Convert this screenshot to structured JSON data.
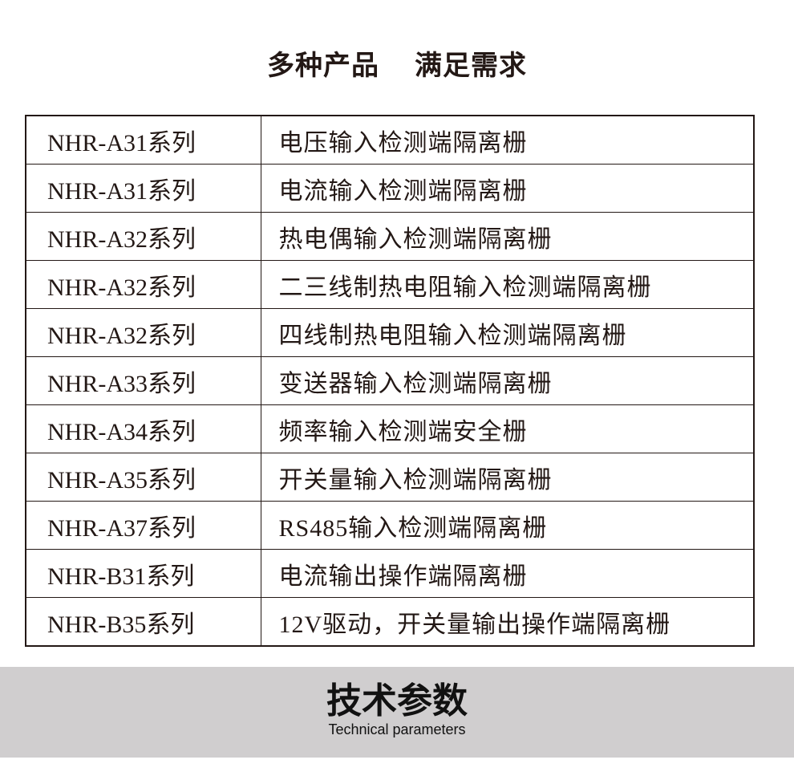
{
  "header": {
    "title_part1": "多种产品",
    "title_part2": "满足需求"
  },
  "table": {
    "rows": [
      {
        "series": "NHR-A31系列",
        "desc": "电压输入检测端隔离栅"
      },
      {
        "series": "NHR-A31系列",
        "desc": "电流输入检测端隔离栅"
      },
      {
        "series": "NHR-A32系列",
        "desc": "热电偶输入检测端隔离栅"
      },
      {
        "series": "NHR-A32系列",
        "desc": "二三线制热电阻输入检测端隔离栅"
      },
      {
        "series": "NHR-A32系列",
        "desc": "四线制热电阻输入检测端隔离栅"
      },
      {
        "series": "NHR-A33系列",
        "desc": "变送器输入检测端隔离栅"
      },
      {
        "series": "NHR-A34系列",
        "desc": "频率输入检测端安全栅"
      },
      {
        "series": "NHR-A35系列",
        "desc": "开关量输入检测端隔离栅"
      },
      {
        "series": "NHR-A37系列",
        "desc": "RS485输入检测端隔离栅"
      },
      {
        "series": "NHR-B31系列",
        "desc": "电流输出操作端隔离栅"
      },
      {
        "series": "NHR-B35系列",
        "desc": "12V驱动，开关量输出操作端隔离栅"
      }
    ]
  },
  "section": {
    "title_zh": "技术参数",
    "title_en": "Technical parameters",
    "band_color": "#d0cecf"
  }
}
